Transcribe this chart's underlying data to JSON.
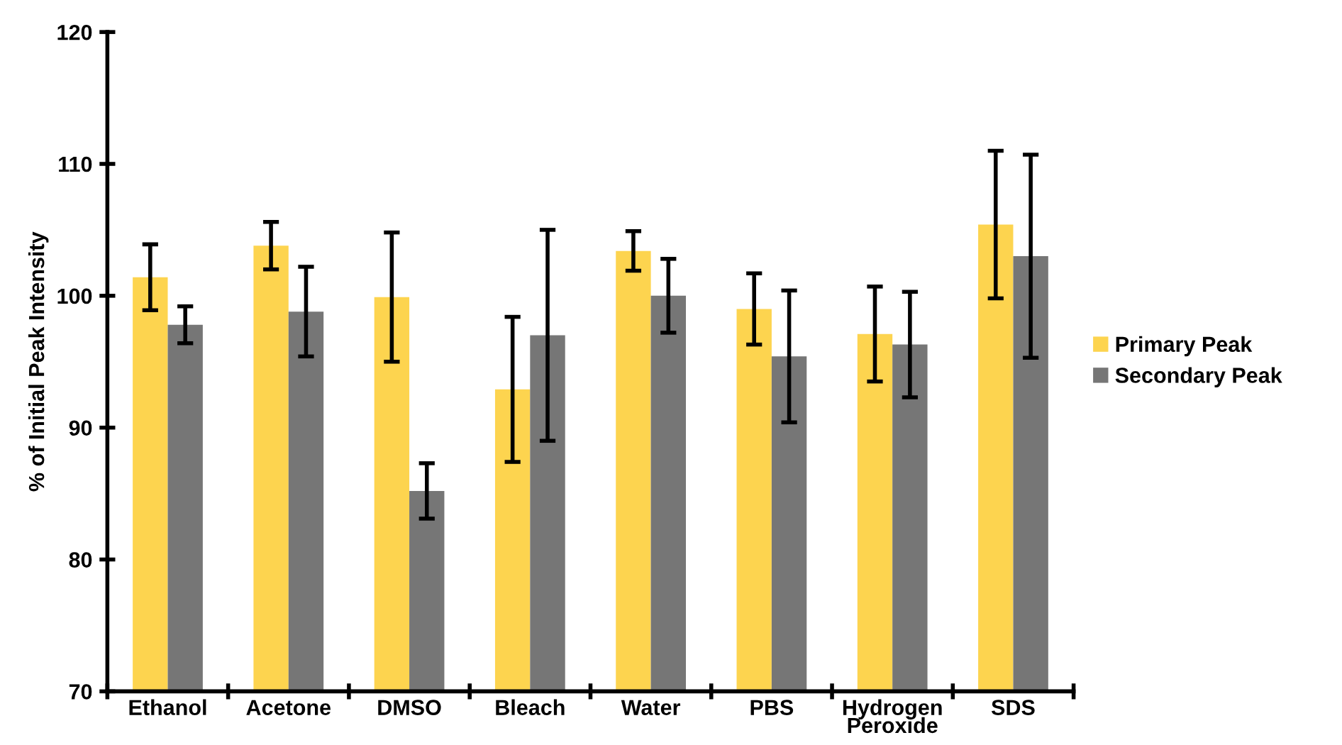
{
  "chart_data": {
    "type": "bar",
    "ylabel": "% of Initial Peak Intensity",
    "categories": [
      "Ethanol",
      "Acetone",
      "DMSO",
      "Bleach",
      "Water",
      "PBS",
      "Hydrogen\nPeroxide",
      "SDS"
    ],
    "series": [
      {
        "name": "Primary Peak",
        "color": "#fdd44f",
        "values": [
          101.4,
          103.8,
          99.9,
          92.9,
          103.4,
          99.0,
          97.1,
          105.4
        ],
        "errors": [
          2.5,
          1.8,
          4.9,
          5.5,
          1.5,
          2.7,
          3.6,
          5.6
        ]
      },
      {
        "name": "Secondary Peak",
        "color": "#767676",
        "values": [
          97.8,
          98.8,
          85.2,
          97.0,
          100.0,
          95.4,
          96.3,
          103.0
        ],
        "errors": [
          1.4,
          3.4,
          2.1,
          8.0,
          2.8,
          5.0,
          4.0,
          7.7
        ]
      }
    ],
    "ylim": [
      70,
      120
    ],
    "yticks": [
      70,
      80,
      90,
      100,
      110,
      120
    ],
    "grid": false,
    "legend": "right"
  }
}
